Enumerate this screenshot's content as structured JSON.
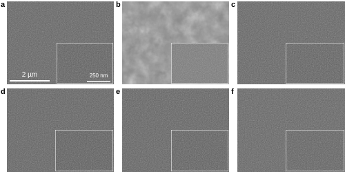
{
  "panels": [
    {
      "label": "a",
      "scale_bar": "2 µm",
      "inset_scale_bar": "250 nm"
    },
    {
      "label": "b"
    },
    {
      "label": "c"
    },
    {
      "label": "d"
    },
    {
      "label": "e"
    },
    {
      "label": "f"
    }
  ]
}
